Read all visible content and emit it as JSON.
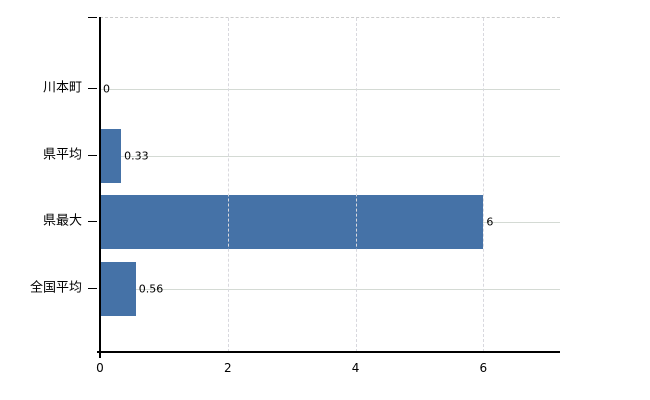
{
  "chart_data": {
    "type": "bar",
    "orientation": "horizontal",
    "title": "",
    "categories": [
      "川本町",
      "県平均",
      "県最大",
      "全国平均"
    ],
    "values": [
      0,
      0.33,
      6,
      0.56
    ],
    "value_labels": [
      "0",
      "0.33",
      "6",
      "0.56"
    ],
    "x_tick_labels": [
      "0",
      "2",
      "4",
      "6"
    ],
    "x_tick_values": [
      0,
      2,
      4,
      6
    ],
    "xlim": [
      0,
      7.2
    ],
    "legend": "none",
    "grid": {
      "horizontal": "solid",
      "vertical": "dashed",
      "top_border": "dashed"
    },
    "colors": {
      "bar": "#4572a7",
      "gridline_horizontal": "#d4dad4",
      "gridline_vertical": "#d8d8de",
      "axis": "#000000",
      "label_text": "#000000",
      "background": "#ffffff"
    }
  }
}
